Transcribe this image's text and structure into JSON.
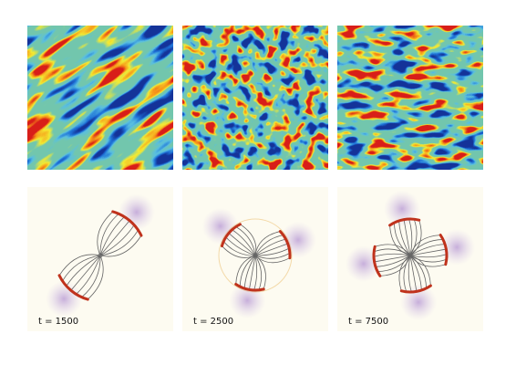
{
  "panels": [
    {
      "label": "t = 1500"
    },
    {
      "label": "t = 2500"
    },
    {
      "label": "t = 7500"
    }
  ]
}
